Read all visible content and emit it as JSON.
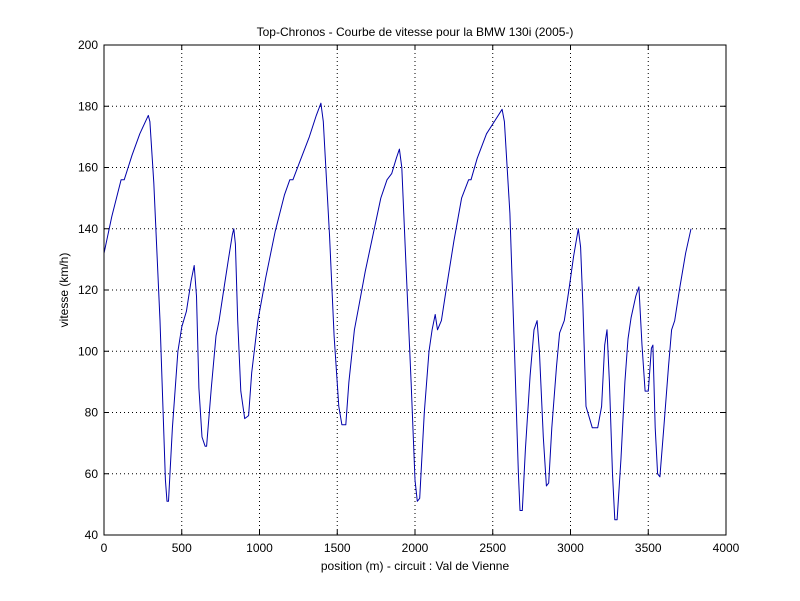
{
  "chart_data": {
    "type": "line",
    "title": "Top-Chronos - Courbe de vitesse pour la BMW 130i (2005-)",
    "xlabel": "position (m) - circuit : Val de Vienne",
    "ylabel": "vitesse (km/h)",
    "xlim": [
      0,
      4000
    ],
    "ylim": [
      40,
      200
    ],
    "xticks": [
      0,
      500,
      1000,
      1500,
      2000,
      2500,
      3000,
      3500,
      4000
    ],
    "yticks": [
      40,
      60,
      80,
      100,
      120,
      140,
      160,
      180,
      200
    ],
    "grid": true,
    "series": [
      {
        "color": "#0000aa",
        "points": [
          [
            0,
            132
          ],
          [
            50,
            144
          ],
          [
            110,
            156
          ],
          [
            130,
            156
          ],
          [
            180,
            164
          ],
          [
            230,
            171
          ],
          [
            285,
            177
          ],
          [
            295,
            175
          ],
          [
            320,
            155
          ],
          [
            360,
            110
          ],
          [
            395,
            58
          ],
          [
            405,
            51
          ],
          [
            415,
            51
          ],
          [
            440,
            75
          ],
          [
            475,
            100
          ],
          [
            500,
            108
          ],
          [
            530,
            113
          ],
          [
            560,
            123
          ],
          [
            580,
            128
          ],
          [
            595,
            118
          ],
          [
            610,
            88
          ],
          [
            630,
            72
          ],
          [
            650,
            69
          ],
          [
            660,
            69
          ],
          [
            690,
            88
          ],
          [
            720,
            105
          ],
          [
            740,
            110
          ],
          [
            770,
            120
          ],
          [
            800,
            130
          ],
          [
            825,
            138
          ],
          [
            835,
            140
          ],
          [
            845,
            135
          ],
          [
            860,
            110
          ],
          [
            880,
            87
          ],
          [
            905,
            78
          ],
          [
            930,
            79
          ],
          [
            950,
            93
          ],
          [
            990,
            110
          ],
          [
            1040,
            124
          ],
          [
            1100,
            139
          ],
          [
            1160,
            151
          ],
          [
            1195,
            156
          ],
          [
            1215,
            156
          ],
          [
            1260,
            162
          ],
          [
            1320,
            170
          ],
          [
            1365,
            177
          ],
          [
            1395,
            181
          ],
          [
            1410,
            175
          ],
          [
            1450,
            138
          ],
          [
            1480,
            105
          ],
          [
            1510,
            82
          ],
          [
            1530,
            76
          ],
          [
            1555,
            76
          ],
          [
            1575,
            90
          ],
          [
            1610,
            107
          ],
          [
            1640,
            115
          ],
          [
            1680,
            126
          ],
          [
            1730,
            138
          ],
          [
            1780,
            150
          ],
          [
            1820,
            156
          ],
          [
            1850,
            158
          ],
          [
            1880,
            163
          ],
          [
            1900,
            166
          ],
          [
            1915,
            160
          ],
          [
            1945,
            125
          ],
          [
            1975,
            90
          ],
          [
            2000,
            58
          ],
          [
            2015,
            51
          ],
          [
            2030,
            52
          ],
          [
            2060,
            80
          ],
          [
            2090,
            100
          ],
          [
            2110,
            107
          ],
          [
            2130,
            112
          ],
          [
            2145,
            107
          ],
          [
            2170,
            110
          ],
          [
            2200,
            120
          ],
          [
            2250,
            136
          ],
          [
            2300,
            150
          ],
          [
            2345,
            156
          ],
          [
            2360,
            156
          ],
          [
            2400,
            163
          ],
          [
            2460,
            171
          ],
          [
            2510,
            175
          ],
          [
            2560,
            179
          ],
          [
            2575,
            175
          ],
          [
            2610,
            145
          ],
          [
            2640,
            100
          ],
          [
            2665,
            60
          ],
          [
            2675,
            48
          ],
          [
            2690,
            48
          ],
          [
            2710,
            68
          ],
          [
            2740,
            92
          ],
          [
            2765,
            107
          ],
          [
            2785,
            110
          ],
          [
            2800,
            100
          ],
          [
            2825,
            72
          ],
          [
            2845,
            56
          ],
          [
            2860,
            57
          ],
          [
            2880,
            75
          ],
          [
            2910,
            95
          ],
          [
            2930,
            106
          ],
          [
            2960,
            110
          ],
          [
            2990,
            120
          ],
          [
            3020,
            131
          ],
          [
            3050,
            140
          ],
          [
            3065,
            134
          ],
          [
            3080,
            115
          ],
          [
            3100,
            82
          ],
          [
            3140,
            75
          ],
          [
            3175,
            75
          ],
          [
            3200,
            82
          ],
          [
            3220,
            102
          ],
          [
            3235,
            107
          ],
          [
            3250,
            90
          ],
          [
            3270,
            60
          ],
          [
            3285,
            45
          ],
          [
            3300,
            45
          ],
          [
            3325,
            65
          ],
          [
            3350,
            90
          ],
          [
            3370,
            104
          ],
          [
            3390,
            111
          ],
          [
            3420,
            118
          ],
          [
            3440,
            121
          ],
          [
            3460,
            102
          ],
          [
            3480,
            87
          ],
          [
            3500,
            87
          ],
          [
            3520,
            101
          ],
          [
            3530,
            102
          ],
          [
            3545,
            75
          ],
          [
            3560,
            60
          ],
          [
            3575,
            59
          ],
          [
            3600,
            75
          ],
          [
            3630,
            95
          ],
          [
            3650,
            107
          ],
          [
            3670,
            110
          ],
          [
            3700,
            120
          ],
          [
            3740,
            132
          ],
          [
            3775,
            140
          ]
        ]
      }
    ]
  }
}
